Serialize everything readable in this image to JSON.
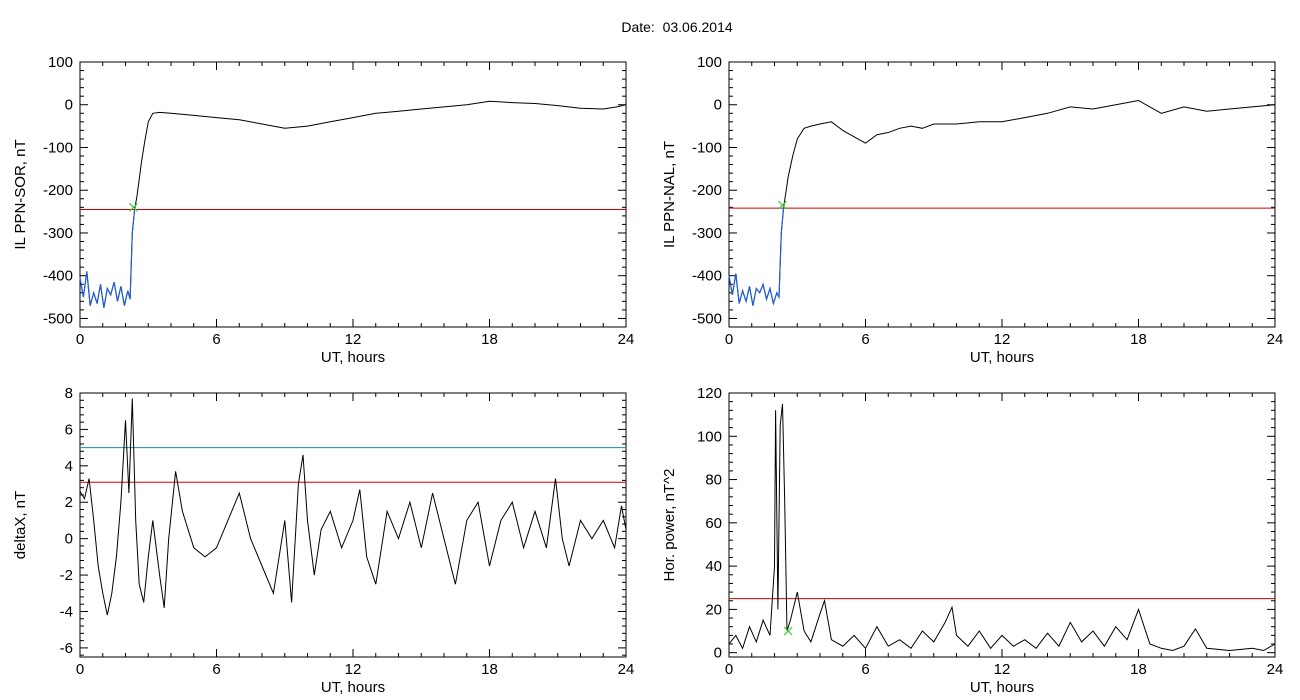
{
  "header": {
    "date_label": "Date:",
    "date_value": "03.06.2014"
  },
  "colors": {
    "trace": "#000000",
    "threshold": "#cc0000",
    "threshold_high": "#1a8fa0",
    "selection": "#1f5fd4",
    "marker": "#39d139"
  },
  "chart_data": [
    {
      "type": "line",
      "xlabel": "UT, hours",
      "ylabel": "IL PPN-SOR, nT",
      "xlim": [
        0,
        24
      ],
      "ylim": [
        -520,
        100
      ],
      "xticks": [
        0,
        6,
        12,
        18,
        24
      ],
      "yticks": [
        100,
        0,
        -100,
        -200,
        -300,
        -400,
        -500
      ],
      "threshold": -245,
      "marker": {
        "x": 2.35,
        "y": -240
      },
      "series": [
        {
          "values": [
            [
              0,
              -405
            ],
            [
              0.15,
              -450
            ],
            [
              0.3,
              -390
            ],
            [
              0.45,
              -470
            ],
            [
              0.6,
              -440
            ],
            [
              0.75,
              -465
            ],
            [
              0.9,
              -420
            ],
            [
              1.05,
              -475
            ],
            [
              1.2,
              -430
            ],
            [
              1.35,
              -445
            ],
            [
              1.5,
              -415
            ],
            [
              1.65,
              -460
            ],
            [
              1.8,
              -425
            ],
            [
              1.95,
              -470
            ],
            [
              2.1,
              -435
            ],
            [
              2.2,
              -455
            ],
            [
              2.3,
              -300
            ],
            [
              2.4,
              -245
            ],
            [
              2.5,
              -215
            ],
            [
              2.6,
              -175
            ],
            [
              2.7,
              -135
            ],
            [
              2.85,
              -85
            ],
            [
              3.0,
              -40
            ],
            [
              3.2,
              -20
            ],
            [
              3.5,
              -18
            ],
            [
              4,
              -20
            ],
            [
              5,
              -25
            ],
            [
              6,
              -30
            ],
            [
              7,
              -35
            ],
            [
              8,
              -45
            ],
            [
              9,
              -55
            ],
            [
              10,
              -50
            ],
            [
              11,
              -40
            ],
            [
              12,
              -30
            ],
            [
              13,
              -20
            ],
            [
              14,
              -15
            ],
            [
              15,
              -10
            ],
            [
              16,
              -5
            ],
            [
              17,
              0
            ],
            [
              18,
              8
            ],
            [
              19,
              5
            ],
            [
              20,
              3
            ],
            [
              21,
              -2
            ],
            [
              22,
              -8
            ],
            [
              23,
              -10
            ],
            [
              23.6,
              -5
            ],
            [
              24,
              0
            ]
          ]
        }
      ]
    },
    {
      "type": "line",
      "xlabel": "UT, hours",
      "ylabel": "IL PPN-NAL, nT",
      "xlim": [
        0,
        24
      ],
      "ylim": [
        -520,
        100
      ],
      "xticks": [
        0,
        6,
        12,
        18,
        24
      ],
      "yticks": [
        100,
        0,
        -100,
        -200,
        -300,
        -400,
        -500
      ],
      "threshold": -242,
      "marker": {
        "x": 2.35,
        "y": -235
      },
      "series": [
        {
          "values": [
            [
              0,
              -400
            ],
            [
              0.15,
              -445
            ],
            [
              0.3,
              -395
            ],
            [
              0.45,
              -465
            ],
            [
              0.6,
              -435
            ],
            [
              0.75,
              -460
            ],
            [
              0.9,
              -425
            ],
            [
              1.05,
              -470
            ],
            [
              1.2,
              -430
            ],
            [
              1.35,
              -440
            ],
            [
              1.5,
              -420
            ],
            [
              1.65,
              -455
            ],
            [
              1.8,
              -430
            ],
            [
              1.95,
              -465
            ],
            [
              2.1,
              -440
            ],
            [
              2.2,
              -450
            ],
            [
              2.3,
              -300
            ],
            [
              2.4,
              -240
            ],
            [
              2.5,
              -205
            ],
            [
              2.6,
              -170
            ],
            [
              2.8,
              -120
            ],
            [
              3.0,
              -80
            ],
            [
              3.3,
              -55
            ],
            [
              3.6,
              -50
            ],
            [
              4,
              -45
            ],
            [
              4.5,
              -40
            ],
            [
              5,
              -60
            ],
            [
              5.5,
              -75
            ],
            [
              6,
              -90
            ],
            [
              6.5,
              -70
            ],
            [
              7,
              -65
            ],
            [
              7.5,
              -55
            ],
            [
              8,
              -50
            ],
            [
              8.5,
              -55
            ],
            [
              9,
              -45
            ],
            [
              10,
              -45
            ],
            [
              11,
              -40
            ],
            [
              12,
              -40
            ],
            [
              13,
              -30
            ],
            [
              14,
              -20
            ],
            [
              15,
              -5
            ],
            [
              16,
              -10
            ],
            [
              17,
              0
            ],
            [
              18,
              10
            ],
            [
              19,
              -20
            ],
            [
              20,
              -5
            ],
            [
              21,
              -15
            ],
            [
              22,
              -10
            ],
            [
              23,
              -5
            ],
            [
              24,
              0
            ]
          ]
        }
      ]
    },
    {
      "type": "line",
      "xlabel": "UT, hours",
      "ylabel": "deltaX, nT",
      "xlim": [
        0,
        24
      ],
      "ylim": [
        -6.5,
        8
      ],
      "xticks": [
        0,
        6,
        12,
        18,
        24
      ],
      "yticks": [
        8,
        6,
        4,
        2,
        0,
        -2,
        -4,
        -6
      ],
      "threshold": 3.1,
      "threshold_high": 5.0,
      "series": [
        {
          "values": [
            [
              0,
              2.6
            ],
            [
              0.2,
              2.2
            ],
            [
              0.4,
              3.3
            ],
            [
              0.6,
              1.0
            ],
            [
              0.8,
              -1.5
            ],
            [
              1.0,
              -3.0
            ],
            [
              1.2,
              -4.2
            ],
            [
              1.4,
              -3.0
            ],
            [
              1.6,
              -1.0
            ],
            [
              1.8,
              2.0
            ],
            [
              2.0,
              6.5
            ],
            [
              2.15,
              2.5
            ],
            [
              2.3,
              7.7
            ],
            [
              2.45,
              1.0
            ],
            [
              2.6,
              -2.5
            ],
            [
              2.8,
              -3.5
            ],
            [
              3.0,
              -1.0
            ],
            [
              3.2,
              1.0
            ],
            [
              3.5,
              -2.0
            ],
            [
              3.7,
              -3.8
            ],
            [
              3.9,
              0
            ],
            [
              4.2,
              3.7
            ],
            [
              4.5,
              1.5
            ],
            [
              5,
              -0.5
            ],
            [
              5.5,
              -1.0
            ],
            [
              6,
              -0.5
            ],
            [
              6.5,
              1.0
            ],
            [
              7,
              2.5
            ],
            [
              7.5,
              0
            ],
            [
              8,
              -1.5
            ],
            [
              8.5,
              -3.0
            ],
            [
              9,
              1.0
            ],
            [
              9.3,
              -3.5
            ],
            [
              9.6,
              3.0
            ],
            [
              9.8,
              4.6
            ],
            [
              10,
              1.0
            ],
            [
              10.3,
              -2.0
            ],
            [
              10.6,
              0.5
            ],
            [
              11,
              1.5
            ],
            [
              11.5,
              -0.5
            ],
            [
              12,
              1.0
            ],
            [
              12.3,
              2.7
            ],
            [
              12.6,
              -1.0
            ],
            [
              13,
              -2.5
            ],
            [
              13.5,
              1.5
            ],
            [
              14,
              0.0
            ],
            [
              14.5,
              2.0
            ],
            [
              15,
              -0.5
            ],
            [
              15.5,
              2.5
            ],
            [
              16,
              0.0
            ],
            [
              16.5,
              -2.5
            ],
            [
              17,
              1.0
            ],
            [
              17.5,
              2.0
            ],
            [
              18,
              -1.5
            ],
            [
              18.5,
              1.0
            ],
            [
              19,
              2.0
            ],
            [
              19.5,
              -0.5
            ],
            [
              20,
              1.5
            ],
            [
              20.5,
              -0.5
            ],
            [
              20.9,
              3.3
            ],
            [
              21.2,
              0.0
            ],
            [
              21.5,
              -1.5
            ],
            [
              22,
              1.0
            ],
            [
              22.5,
              0.0
            ],
            [
              23,
              1.0
            ],
            [
              23.5,
              -0.5
            ],
            [
              23.8,
              1.8
            ],
            [
              24,
              0.5
            ]
          ]
        }
      ]
    },
    {
      "type": "line",
      "xlabel": "UT, hours",
      "ylabel": "Hor. power, nT^2",
      "xlim": [
        0,
        24
      ],
      "ylim": [
        -2,
        120
      ],
      "xticks": [
        0,
        6,
        12,
        18,
        24
      ],
      "yticks": [
        120,
        100,
        80,
        60,
        40,
        20,
        0
      ],
      "threshold": 25,
      "marker": {
        "x": 2.6,
        "y": 10
      },
      "series": [
        {
          "values": [
            [
              0,
              4
            ],
            [
              0.3,
              8
            ],
            [
              0.6,
              2
            ],
            [
              0.9,
              12
            ],
            [
              1.2,
              5
            ],
            [
              1.5,
              15
            ],
            [
              1.8,
              8
            ],
            [
              2.0,
              40
            ],
            [
              2.05,
              112
            ],
            [
              2.15,
              20
            ],
            [
              2.25,
              105
            ],
            [
              2.35,
              115
            ],
            [
              2.45,
              70
            ],
            [
              2.55,
              10
            ],
            [
              2.7,
              15
            ],
            [
              3.0,
              28
            ],
            [
              3.3,
              10
            ],
            [
              3.6,
              5
            ],
            [
              4.0,
              18
            ],
            [
              4.2,
              24
            ],
            [
              4.5,
              6
            ],
            [
              5,
              3
            ],
            [
              5.5,
              8
            ],
            [
              6,
              2
            ],
            [
              6.5,
              12
            ],
            [
              7,
              3
            ],
            [
              7.5,
              6
            ],
            [
              8,
              2
            ],
            [
              8.5,
              10
            ],
            [
              9,
              5
            ],
            [
              9.5,
              14
            ],
            [
              9.8,
              21
            ],
            [
              10,
              8
            ],
            [
              10.5,
              3
            ],
            [
              11,
              10
            ],
            [
              11.5,
              2
            ],
            [
              12,
              8
            ],
            [
              12.5,
              3
            ],
            [
              13,
              6
            ],
            [
              13.5,
              2
            ],
            [
              14,
              9
            ],
            [
              14.5,
              3
            ],
            [
              15,
              14
            ],
            [
              15.5,
              5
            ],
            [
              16,
              10
            ],
            [
              16.5,
              3
            ],
            [
              17,
              12
            ],
            [
              17.5,
              6
            ],
            [
              18,
              20
            ],
            [
              18.5,
              4
            ],
            [
              19,
              2
            ],
            [
              19.5,
              1
            ],
            [
              20,
              3
            ],
            [
              20.5,
              11
            ],
            [
              21,
              2
            ],
            [
              22,
              1
            ],
            [
              23,
              2
            ],
            [
              23.5,
              1
            ],
            [
              24,
              4
            ]
          ]
        }
      ]
    }
  ]
}
